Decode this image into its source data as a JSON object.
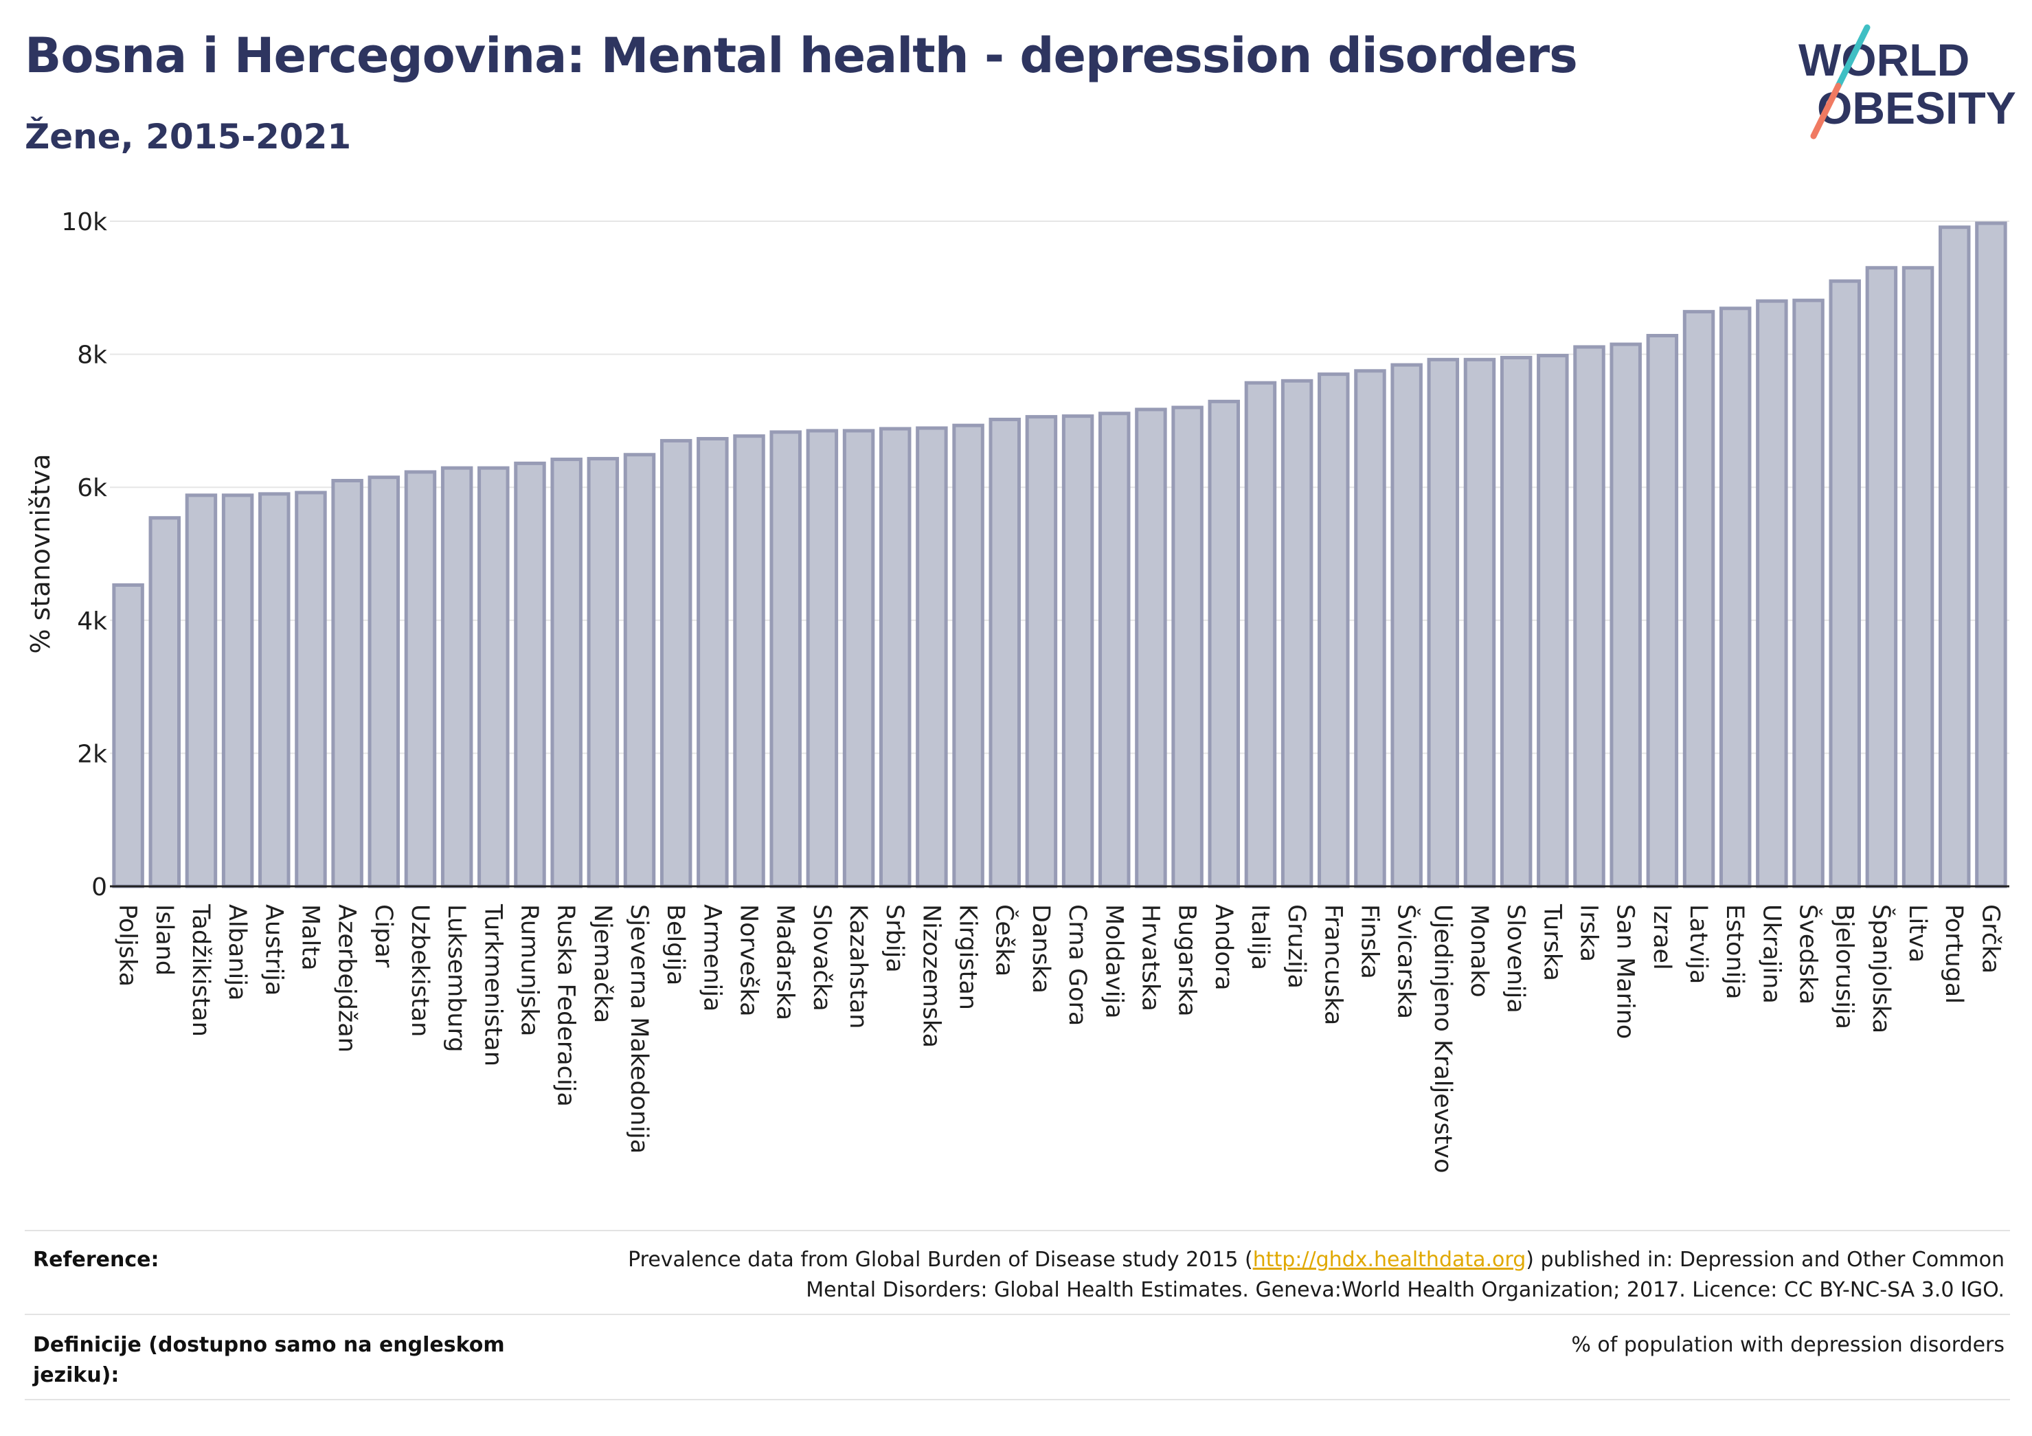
{
  "header": {
    "title": "Bosna i Hercegovina: Mental health - depression disorders",
    "subtitle": "Žene, 2015-2021"
  },
  "logo": {
    "word_top": "WORLD",
    "word_bottom": "OBESITY",
    "text_color": "#2e3560",
    "slash_color_top": "#3fbfc4",
    "slash_color_bottom": "#f07a62"
  },
  "footer": {
    "reference_label": "Reference:",
    "reference_line1_before": "Prevalence data from Global Burden of Disease study 2015 (",
    "reference_link": "http://ghdx.healthdata.org",
    "reference_line1_after": ") published in: Depression and Other Common",
    "reference_line2": "Mental Disorders: Global Health Estimates. Geneva:World Health Organization; 2017. Licence: CC BY-NC-SA 3.0 IGO.",
    "definition_label_line1": "Definicije (dostupno samo na engleskom",
    "definition_label_line2": "jeziku):",
    "definition_text": "% of population with depression disorders"
  },
  "chart_data": {
    "type": "bar",
    "title": "Bosna i Hercegovina: Mental health - depression disorders",
    "subtitle": "Žene, 2015-2021",
    "ylabel": "% stanovništva",
    "xlabel": "",
    "ylim": [
      0,
      10000
    ],
    "yticks": [
      0,
      2000,
      4000,
      6000,
      8000,
      10000
    ],
    "ytick_labels": [
      "0",
      "2k",
      "4k",
      "6k",
      "8k",
      "10k"
    ],
    "grid": true,
    "bar_fill": "#c0c4d2",
    "bar_stroke": "#979bb5",
    "categories": [
      "Poljska",
      "Island",
      "Tadžikistan",
      "Albanija",
      "Austrija",
      "Malta",
      "Azerbejdžan",
      "Cipar",
      "Uzbekistan",
      "Luksemburg",
      "Turkmenistan",
      "Rumunjska",
      "Ruska Federacija",
      "Njemačka",
      "Sjeverna Makedonija",
      "Belgija",
      "Armenija",
      "Norveška",
      "Mađarska",
      "Slovačka",
      "Kazahstan",
      "Srbija",
      "Nizozemska",
      "Kirgistan",
      "Češka",
      "Danska",
      "Crna Gora",
      "Moldavija",
      "Hrvatska",
      "Bugarska",
      "Andora",
      "Italija",
      "Gruzija",
      "Francuska",
      "Finska",
      "Švicarska",
      "Ujedinjeno Kraljevstvo",
      "Monako",
      "Slovenija",
      "Turska",
      "Irska",
      "San Marino",
      "Izrael",
      "Latvija",
      "Estonija",
      "Ukrajina",
      "Švedska",
      "Bjelorusija",
      "Španjolska",
      "Litva",
      "Portugal",
      "Grčka"
    ],
    "values": [
      4530,
      5540,
      5880,
      5880,
      5900,
      5920,
      6100,
      6150,
      6230,
      6290,
      6290,
      6360,
      6420,
      6430,
      6490,
      6700,
      6730,
      6770,
      6830,
      6850,
      6850,
      6880,
      6890,
      6930,
      7020,
      7060,
      7070,
      7110,
      7170,
      7200,
      7290,
      7570,
      7600,
      7700,
      7750,
      7840,
      7920,
      7920,
      7950,
      7980,
      8110,
      8150,
      8280,
      8640,
      8690,
      8800,
      8810,
      9100,
      9300,
      9300,
      9910,
      9970
    ]
  }
}
